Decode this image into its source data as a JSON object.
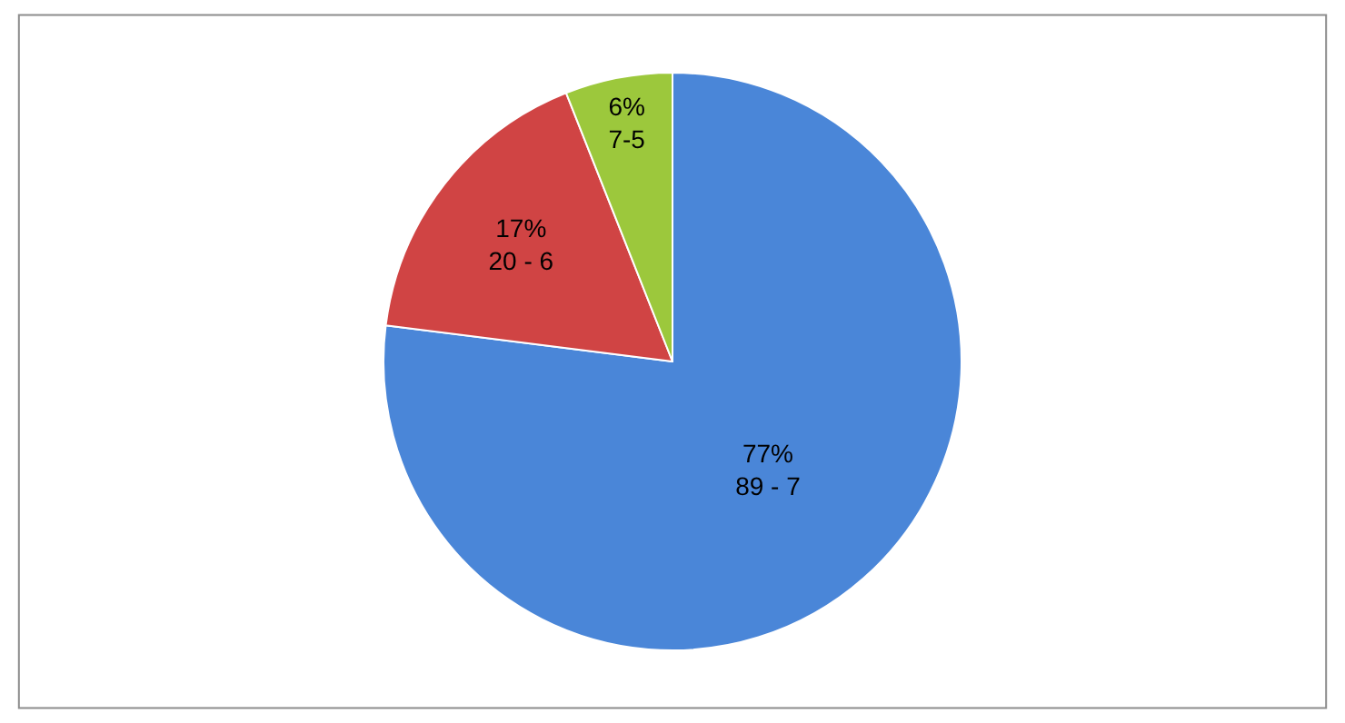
{
  "chart_data": {
    "type": "pie",
    "categories": [
      "89 - 7",
      "20 - 6",
      "7-5"
    ],
    "values": [
      77,
      17,
      6
    ],
    "value_labels": [
      "77%",
      "17%",
      "6%"
    ],
    "colors": [
      "#4a86d8",
      "#d04444",
      "#9cc83c"
    ],
    "legend": false
  }
}
